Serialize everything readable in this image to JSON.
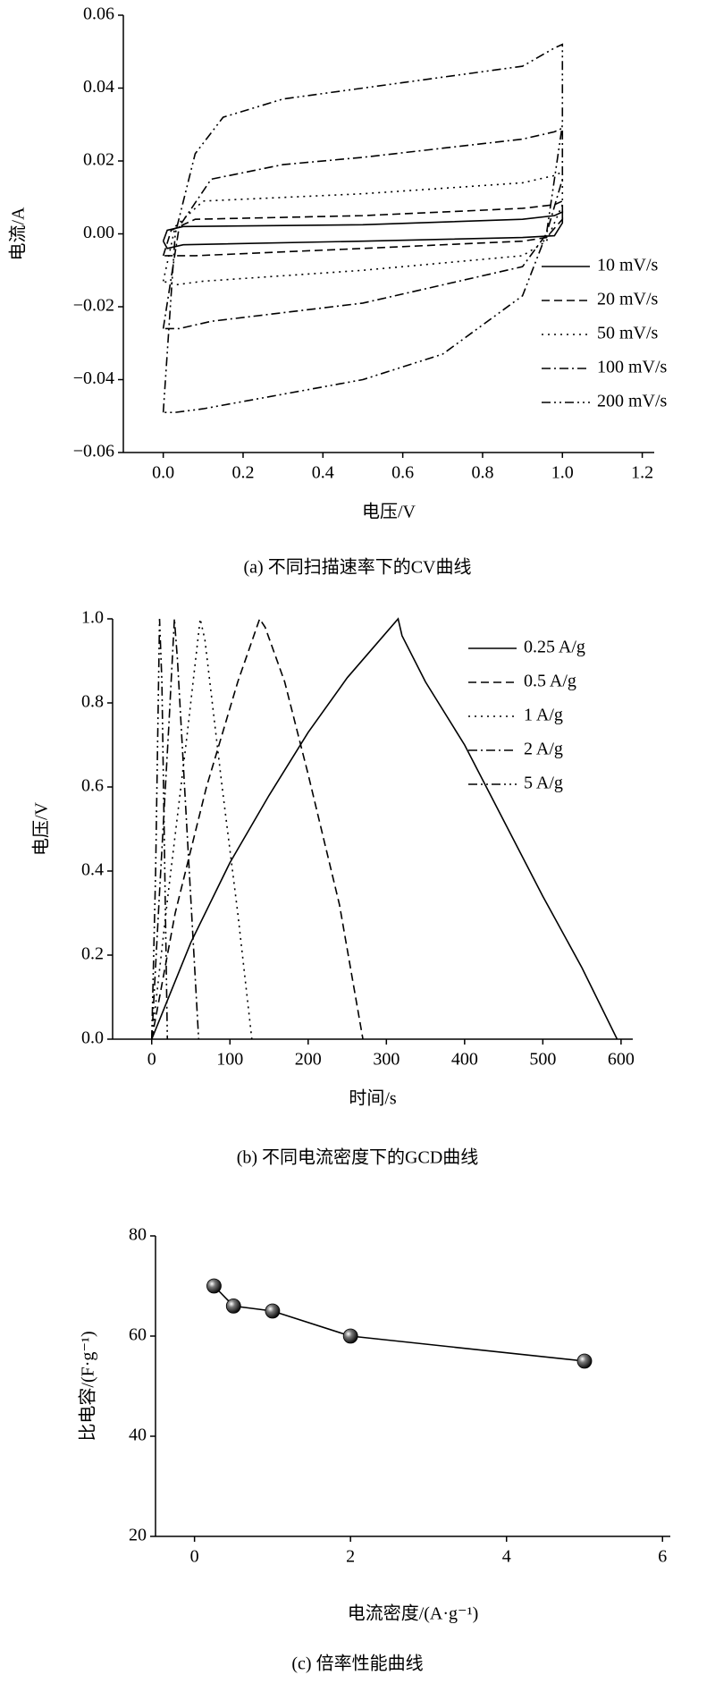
{
  "chart_data": [
    {
      "type": "line",
      "caption": "(a) 不同扫描速率下的CV曲线",
      "xlabel": "电压/V",
      "ylabel": "电流/A",
      "xlim": [
        -0.1,
        1.23
      ],
      "ylim": [
        -0.06,
        0.06
      ],
      "xticks": [
        {
          "value": 0,
          "label": "0.0"
        },
        {
          "value": 0.2,
          "label": "0.2"
        },
        {
          "value": 0.4,
          "label": "0.4"
        },
        {
          "value": 0.6,
          "label": "0.6"
        },
        {
          "value": 0.8,
          "label": "0.8"
        },
        {
          "value": 1,
          "label": "1.0"
        },
        {
          "value": 1.2,
          "label": "1.2"
        }
      ],
      "yticks": [
        {
          "value": -0.06,
          "label": "−0.06"
        },
        {
          "value": -0.04,
          "label": "−0.04"
        },
        {
          "value": -0.02,
          "label": "−0.02"
        },
        {
          "value": 0,
          "label": "0.00"
        },
        {
          "value": 0.02,
          "label": "0.02"
        },
        {
          "value": 0.04,
          "label": "0.04"
        },
        {
          "value": 0.06,
          "label": "0.06"
        }
      ],
      "legend": "right",
      "series": [
        {
          "name": "10 mV/s",
          "color": "#000000",
          "dash": "solid",
          "x": [
            0,
            0.01,
            0.05,
            0.5,
            0.9,
            0.98,
            1.0,
            1.0,
            0.98,
            0.9,
            0.5,
            0.05,
            0.01,
            0
          ],
          "values": [
            -0.002,
            0.001,
            0.002,
            0.0025,
            0.004,
            0.005,
            0.006,
            0.003,
            -0.0005,
            -0.001,
            -0.002,
            -0.003,
            -0.004,
            -0.002
          ]
        },
        {
          "name": "20 mV/s",
          "color": "#000000",
          "dash": "dashed",
          "x": [
            0,
            0.02,
            0.08,
            0.5,
            0.9,
            0.98,
            1.0,
            1.0,
            0.96,
            0.9,
            0.5,
            0.08,
            0.02,
            0
          ],
          "values": [
            -0.006,
            0.001,
            0.004,
            0.005,
            0.007,
            0.008,
            0.009,
            0.004,
            -0.001,
            -0.002,
            -0.004,
            -0.006,
            -0.006,
            -0.006
          ]
        },
        {
          "name": "50 mV/s",
          "color": "#000000",
          "dash": "dotted",
          "x": [
            0,
            0.03,
            0.1,
            0.5,
            0.9,
            0.98,
            1.0,
            1.0,
            0.96,
            0.9,
            0.5,
            0.1,
            0.03,
            0
          ],
          "values": [
            -0.013,
            0.002,
            0.009,
            0.011,
            0.014,
            0.016,
            0.017,
            0.008,
            -0.002,
            -0.006,
            -0.01,
            -0.013,
            -0.014,
            -0.013
          ]
        },
        {
          "name": "100 mV/s",
          "color": "#000000",
          "dash": "dashdot",
          "x": [
            0,
            0.04,
            0.12,
            0.3,
            0.5,
            0.9,
            0.98,
            1.0,
            1.0,
            0.96,
            0.9,
            0.5,
            0.12,
            0.04,
            0
          ],
          "values": [
            -0.026,
            0.002,
            0.015,
            0.019,
            0.021,
            0.026,
            0.028,
            0.029,
            0.015,
            0.0,
            -0.009,
            -0.019,
            -0.024,
            -0.026,
            -0.026
          ]
        },
        {
          "name": "200 mV/s",
          "color": "#000000",
          "dash": "dashdotdot",
          "x": [
            0,
            0.03,
            0.08,
            0.15,
            0.3,
            0.5,
            0.9,
            0.98,
            1.0,
            1.0,
            0.96,
            0.9,
            0.7,
            0.5,
            0.1,
            0.03,
            0
          ],
          "values": [
            -0.049,
            0.0,
            0.022,
            0.032,
            0.037,
            0.04,
            0.046,
            0.051,
            0.052,
            0.03,
            0.0,
            -0.017,
            -0.033,
            -0.04,
            -0.048,
            -0.049,
            -0.049
          ]
        }
      ]
    },
    {
      "type": "line",
      "caption": "(b) 不同电流密度下的GCD曲线",
      "xlabel": "时间/s",
      "ylabel": "电压/V",
      "xlim": [
        -50,
        615
      ],
      "ylim": [
        0,
        1
      ],
      "xticks": [
        0,
        100,
        200,
        300,
        400,
        500,
        600
      ],
      "yticks": [
        {
          "value": 0,
          "label": "0.0"
        },
        {
          "value": 0.2,
          "label": "0.2"
        },
        {
          "value": 0.4,
          "label": "0.4"
        },
        {
          "value": 0.6,
          "label": "0.6"
        },
        {
          "value": 0.8,
          "label": "0.8"
        },
        {
          "value": 1,
          "label": "1.0"
        }
      ],
      "legend": "upper right",
      "series": [
        {
          "name": "0.25 A/g",
          "color": "#000000",
          "dash": "solid",
          "x": [
            0,
            50,
            100,
            150,
            200,
            250,
            315,
            320,
            350,
            400,
            450,
            500,
            550,
            595
          ],
          "values": [
            0,
            0.23,
            0.42,
            0.58,
            0.73,
            0.86,
            1.0,
            0.96,
            0.85,
            0.7,
            0.52,
            0.34,
            0.17,
            0
          ]
        },
        {
          "name": "0.5 A/g",
          "color": "#000000",
          "dash": "dashed",
          "x": [
            0,
            30,
            70,
            110,
            138,
            145,
            170,
            200,
            240,
            270
          ],
          "values": [
            0,
            0.3,
            0.6,
            0.85,
            1.0,
            0.98,
            0.85,
            0.63,
            0.32,
            0
          ]
        },
        {
          "name": "1 A/g",
          "color": "#000000",
          "dash": "dotted",
          "x": [
            0,
            20,
            45,
            62,
            68,
            90,
            110,
            128
          ],
          "values": [
            0,
            0.33,
            0.72,
            1.0,
            0.95,
            0.6,
            0.3,
            0
          ]
        },
        {
          "name": "2 A/g",
          "color": "#000000",
          "dash": "dashdot",
          "x": [
            0,
            10,
            22,
            29,
            33,
            45,
            60
          ],
          "values": [
            0,
            0.35,
            0.75,
            1.0,
            0.9,
            0.5,
            0
          ]
        },
        {
          "name": "5 A/g",
          "color": "#000000",
          "dash": "dashdotdot",
          "x": [
            0,
            5,
            10,
            13,
            20
          ],
          "values": [
            0,
            0.4,
            1.0,
            0.85,
            0
          ]
        }
      ]
    },
    {
      "type": "scatter",
      "caption": "(c) 倍率性能曲线",
      "xlabel": "电流密度/(A·g⁻¹)",
      "ylabel": "比电容/(F·g⁻¹)",
      "xlim": [
        -0.5,
        6.1
      ],
      "ylim": [
        20,
        80
      ],
      "xticks": [
        0,
        2,
        4,
        6
      ],
      "yticks": [
        20,
        40,
        60,
        80
      ],
      "connect": true,
      "color": "#000000",
      "x": [
        0.25,
        0.5,
        1,
        2,
        5
      ],
      "values": [
        70,
        66,
        65,
        60,
        55
      ]
    }
  ]
}
